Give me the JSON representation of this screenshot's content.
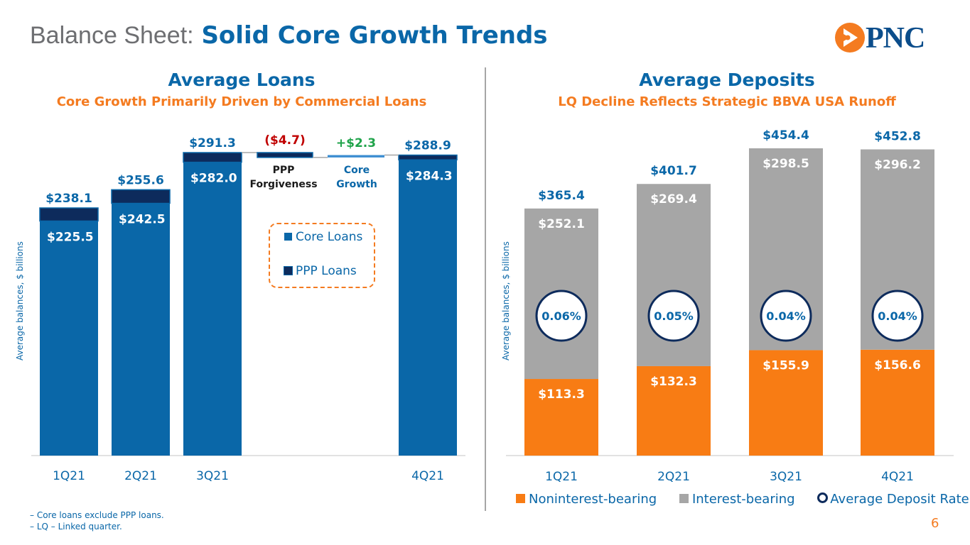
{
  "header": {
    "title_prefix": "Balance Sheet:",
    "title_main": "Solid Core Growth Trends",
    "logo_text": "PNC"
  },
  "loans_panel": {
    "title": "Average Loans",
    "subtitle": "Core Growth Primarily Driven by Commercial Loans",
    "ylabel": "Average balances, $ billions",
    "legend": [
      "Core Loans",
      "PPP Loans"
    ]
  },
  "deposits_panel": {
    "title": "Average Deposits",
    "subtitle": "LQ Decline Reflects Strategic BBVA USA Runoff",
    "ylabel": "Average balances, $ billions",
    "legend": [
      "Noninterest-bearing",
      "Interest-bearing",
      "Average Deposit Rate"
    ]
  },
  "colors": {
    "core": "#0a67a8",
    "ppp": "#0d2b5c",
    "core_growth": "#3c8dd1",
    "noninterest": "#f87c14",
    "interest": "#a6a6a6",
    "negative": "#c00000",
    "positive": "#1fa34a",
    "ring": "#0d2b5c"
  },
  "chart_data": [
    {
      "type": "bar",
      "subtype": "stacked-waterfall",
      "title": "Average Loans",
      "categories": [
        "1Q21",
        "2Q21",
        "3Q21",
        "4Q21"
      ],
      "series": [
        {
          "name": "Core Loans",
          "values": [
            225.5,
            242.5,
            282.0,
            284.3
          ]
        },
        {
          "name": "PPP Loans",
          "values": [
            12.6,
            13.1,
            9.3,
            4.6
          ]
        }
      ],
      "total_labels": [
        "$238.1",
        "$255.6",
        "$291.3",
        "$288.9"
      ],
      "core_labels": [
        "$225.5",
        "$242.5",
        "$282.0",
        "$284.3"
      ],
      "bridge": [
        {
          "label": "PPP Forgiveness",
          "value_label": "($4.7)",
          "value": -4.7
        },
        {
          "label": "Core Growth",
          "value_label": "+$2.3",
          "value": 2.3
        }
      ],
      "ylabel": "Average balances, $ billions",
      "ylim": [
        0,
        300
      ]
    },
    {
      "type": "bar",
      "subtype": "stacked",
      "title": "Average Deposits",
      "categories": [
        "1Q21",
        "2Q21",
        "3Q21",
        "4Q21"
      ],
      "series": [
        {
          "name": "Noninterest-bearing",
          "values": [
            113.3,
            132.3,
            155.9,
            156.6
          ]
        },
        {
          "name": "Interest-bearing",
          "values": [
            252.1,
            269.4,
            298.5,
            296.2
          ]
        }
      ],
      "total_labels": [
        "$365.4",
        "$401.7",
        "$454.4",
        "$452.8"
      ],
      "noninterest_labels": [
        "$113.3",
        "$132.3",
        "$155.9",
        "$156.6"
      ],
      "interest_labels": [
        "$252.1",
        "$269.4",
        "$298.5",
        "$296.2"
      ],
      "average_deposit_rate": [
        "0.06%",
        "0.05%",
        "0.04%",
        "0.04%"
      ],
      "ylabel": "Average balances, $ billions",
      "ylim": [
        0,
        470
      ]
    }
  ],
  "footnotes": [
    "– Core loans exclude PPP loans.",
    "– LQ – Linked quarter."
  ],
  "page_number": "6"
}
